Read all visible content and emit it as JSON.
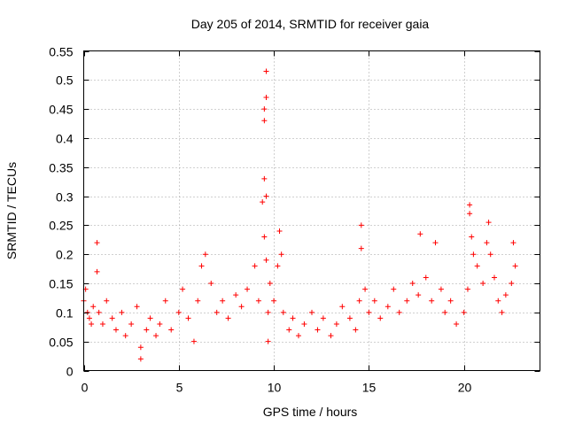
{
  "chart_data": {
    "type": "scatter",
    "title": "Day 205 of 2014, SRMTID for receiver gaia",
    "xlabel": "GPS time / hours",
    "ylabel": "SRMTID / TECUs",
    "xlim": [
      0,
      24
    ],
    "ylim": [
      0,
      0.55
    ],
    "xticks": [
      0,
      5,
      10,
      15,
      20
    ],
    "xtick_labels": [
      "0",
      "5",
      "10",
      "15",
      "20"
    ],
    "yticks": [
      0,
      0.05,
      0.1,
      0.15,
      0.2,
      0.25,
      0.3,
      0.35,
      0.4,
      0.45,
      0.5,
      0.55
    ],
    "ytick_labels": [
      "0",
      "0.05",
      "0.1",
      "0.15",
      "0.2",
      "0.25",
      "0.3",
      "0.35",
      "0.4",
      "0.45",
      "0.5",
      "0.55"
    ],
    "grid": true,
    "marker": "+",
    "color": "#ff0000",
    "series": [
      {
        "name": "SRMTID",
        "x": [
          0.0,
          0.1,
          0.2,
          0.3,
          0.4,
          0.5,
          0.7,
          0.7,
          0.8,
          1.0,
          1.2,
          1.5,
          1.7,
          2.0,
          2.2,
          2.5,
          2.8,
          3.0,
          3.0,
          3.3,
          3.5,
          3.8,
          4.0,
          4.3,
          4.6,
          5.0,
          5.2,
          5.5,
          5.8,
          6.0,
          6.2,
          6.4,
          6.7,
          7.0,
          7.3,
          7.6,
          8.0,
          8.3,
          8.6,
          9.0,
          9.2,
          9.4,
          9.5,
          9.5,
          9.5,
          9.5,
          9.6,
          9.6,
          9.6,
          9.6,
          9.7,
          9.7,
          9.8,
          10.0,
          10.2,
          10.3,
          10.4,
          10.5,
          10.8,
          11.0,
          11.3,
          11.6,
          12.0,
          12.3,
          12.6,
          13.0,
          13.3,
          13.6,
          14.0,
          14.3,
          14.5,
          14.6,
          14.6,
          14.8,
          15.0,
          15.3,
          15.6,
          16.0,
          16.3,
          16.6,
          17.0,
          17.3,
          17.6,
          17.7,
          18.0,
          18.3,
          18.5,
          18.8,
          19.0,
          19.3,
          19.6,
          20.0,
          20.2,
          20.3,
          20.3,
          20.4,
          20.5,
          20.7,
          21.0,
          21.2,
          21.3,
          21.4,
          21.6,
          21.8,
          22.0,
          22.2,
          22.5,
          22.6,
          22.7
        ],
        "y": [
          0.12,
          0.14,
          0.1,
          0.09,
          0.08,
          0.11,
          0.22,
          0.17,
          0.1,
          0.08,
          0.12,
          0.09,
          0.07,
          0.1,
          0.06,
          0.08,
          0.11,
          0.02,
          0.04,
          0.07,
          0.09,
          0.06,
          0.08,
          0.12,
          0.07,
          0.1,
          0.14,
          0.09,
          0.05,
          0.12,
          0.18,
          0.2,
          0.15,
          0.1,
          0.12,
          0.09,
          0.13,
          0.11,
          0.14,
          0.18,
          0.12,
          0.29,
          0.23,
          0.33,
          0.43,
          0.45,
          0.515,
          0.47,
          0.3,
          0.19,
          0.05,
          0.1,
          0.15,
          0.12,
          0.18,
          0.24,
          0.2,
          0.1,
          0.07,
          0.09,
          0.06,
          0.08,
          0.1,
          0.07,
          0.09,
          0.06,
          0.08,
          0.11,
          0.09,
          0.07,
          0.12,
          0.25,
          0.21,
          0.14,
          0.1,
          0.12,
          0.09,
          0.11,
          0.14,
          0.1,
          0.12,
          0.15,
          0.13,
          0.235,
          0.16,
          0.12,
          0.22,
          0.14,
          0.1,
          0.12,
          0.08,
          0.1,
          0.14,
          0.285,
          0.27,
          0.23,
          0.2,
          0.18,
          0.15,
          0.22,
          0.255,
          0.2,
          0.16,
          0.12,
          0.1,
          0.13,
          0.15,
          0.22,
          0.18
        ]
      }
    ]
  }
}
